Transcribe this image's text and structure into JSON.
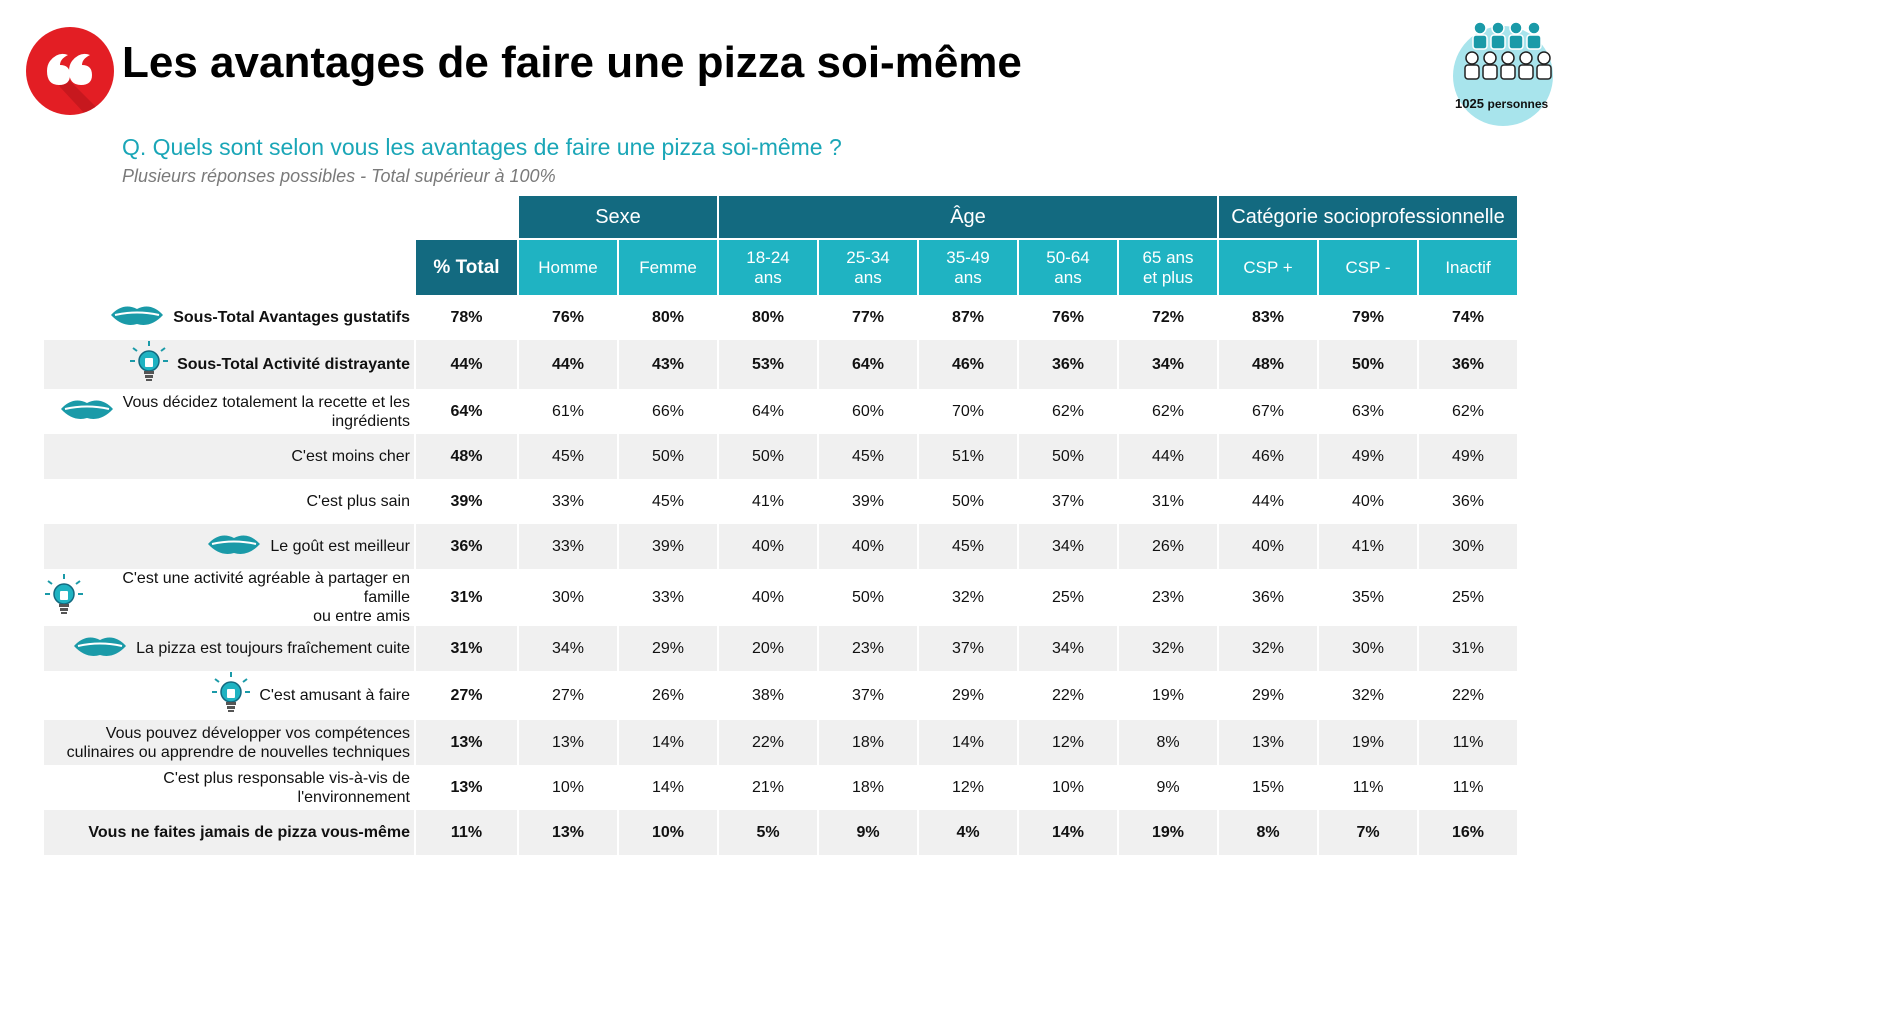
{
  "header": {
    "title": "Les avantages de faire une pizza soi-même",
    "question": "Q. Quels sont selon vous les avantages de faire une pizza soi-même ?",
    "note": "Plusieurs réponses possibles - Total supérieur à 100%",
    "sample_count": "1025",
    "sample_unit": "personnes"
  },
  "colors": {
    "brand_red": "#e31e24",
    "dark_teal": "#136a80",
    "teal": "#1fb3c2",
    "light_teal": "#a8e4ec",
    "question": "#1aa6b7"
  },
  "table": {
    "groups": [
      "Sexe",
      "Âge",
      "Catégorie socioprofessionnelle"
    ],
    "total_header": "% Total",
    "columns": [
      [
        "Homme"
      ],
      [
        "Femme"
      ],
      [
        "18-24",
        "ans"
      ],
      [
        "25-34",
        "ans"
      ],
      [
        "35-49",
        "ans"
      ],
      [
        "50-64",
        "ans"
      ],
      [
        "65 ans",
        "et plus"
      ],
      [
        "CSP +"
      ],
      [
        "CSP -"
      ],
      [
        "Inactif"
      ]
    ],
    "rows": [
      {
        "label": [
          "Sous-Total Avantages gustatifs"
        ],
        "icon": "lips-icon",
        "bold": true,
        "shaded": false,
        "values": [
          "78%",
          "76%",
          "80%",
          "80%",
          "77%",
          "87%",
          "76%",
          "72%",
          "83%",
          "79%",
          "74%"
        ]
      },
      {
        "label": [
          "Sous-Total  Activité distrayante"
        ],
        "icon": "lightbulb-icon",
        "bold": true,
        "shaded": true,
        "values": [
          "44%",
          "44%",
          "43%",
          "53%",
          "64%",
          "46%",
          "36%",
          "34%",
          "48%",
          "50%",
          "36%"
        ]
      },
      {
        "label": [
          "Vous décidez totalement la recette et les",
          "ingrédients"
        ],
        "icon": "lips-icon",
        "bold": false,
        "shaded": false,
        "values": [
          "64%",
          "61%",
          "66%",
          "64%",
          "60%",
          "70%",
          "62%",
          "62%",
          "67%",
          "63%",
          "62%"
        ]
      },
      {
        "label": [
          "C'est moins cher"
        ],
        "icon": "",
        "bold": false,
        "shaded": true,
        "values": [
          "48%",
          "45%",
          "50%",
          "50%",
          "45%",
          "51%",
          "50%",
          "44%",
          "46%",
          "49%",
          "49%"
        ]
      },
      {
        "label": [
          "C'est plus sain"
        ],
        "icon": "",
        "bold": false,
        "shaded": false,
        "values": [
          "39%",
          "33%",
          "45%",
          "41%",
          "39%",
          "50%",
          "37%",
          "31%",
          "44%",
          "40%",
          "36%"
        ]
      },
      {
        "label": [
          "Le goût est meilleur"
        ],
        "icon": "lips-icon",
        "bold": false,
        "shaded": true,
        "values": [
          "36%",
          "33%",
          "39%",
          "40%",
          "40%",
          "45%",
          "34%",
          "26%",
          "40%",
          "41%",
          "30%"
        ]
      },
      {
        "label": [
          "C'est une activité agréable à partager en famille",
          "ou entre amis"
        ],
        "icon": "lightbulb-icon",
        "bold": false,
        "shaded": false,
        "values": [
          "31%",
          "30%",
          "33%",
          "40%",
          "50%",
          "32%",
          "25%",
          "23%",
          "36%",
          "35%",
          "25%"
        ]
      },
      {
        "label": [
          "La pizza est toujours fraîchement cuite"
        ],
        "icon": "lips-icon",
        "bold": false,
        "shaded": true,
        "values": [
          "31%",
          "34%",
          "29%",
          "20%",
          "23%",
          "37%",
          "34%",
          "32%",
          "32%",
          "30%",
          "31%"
        ]
      },
      {
        "label": [
          "C'est amusant à faire"
        ],
        "icon": "lightbulb-icon",
        "bold": false,
        "shaded": false,
        "values": [
          "27%",
          "27%",
          "26%",
          "38%",
          "37%",
          "29%",
          "22%",
          "19%",
          "29%",
          "32%",
          "22%"
        ]
      },
      {
        "label": [
          "Vous pouvez développer vos compétences",
          "culinaires ou apprendre de nouvelles techniques"
        ],
        "icon": "",
        "bold": false,
        "shaded": true,
        "values": [
          "13%",
          "13%",
          "14%",
          "22%",
          "18%",
          "14%",
          "12%",
          "8%",
          "13%",
          "19%",
          "11%"
        ]
      },
      {
        "label": [
          "C'est plus responsable vis-à-vis de",
          "l'environnement"
        ],
        "icon": "",
        "bold": false,
        "shaded": false,
        "values": [
          "13%",
          "10%",
          "14%",
          "21%",
          "18%",
          "12%",
          "10%",
          "9%",
          "15%",
          "11%",
          "11%"
        ]
      },
      {
        "label": [
          "Vous ne faites jamais de pizza vous-même"
        ],
        "icon": "",
        "bold": true,
        "shaded": true,
        "values": [
          "11%",
          "13%",
          "10%",
          "5%",
          "9%",
          "4%",
          "14%",
          "19%",
          "8%",
          "7%",
          "16%"
        ]
      }
    ]
  }
}
